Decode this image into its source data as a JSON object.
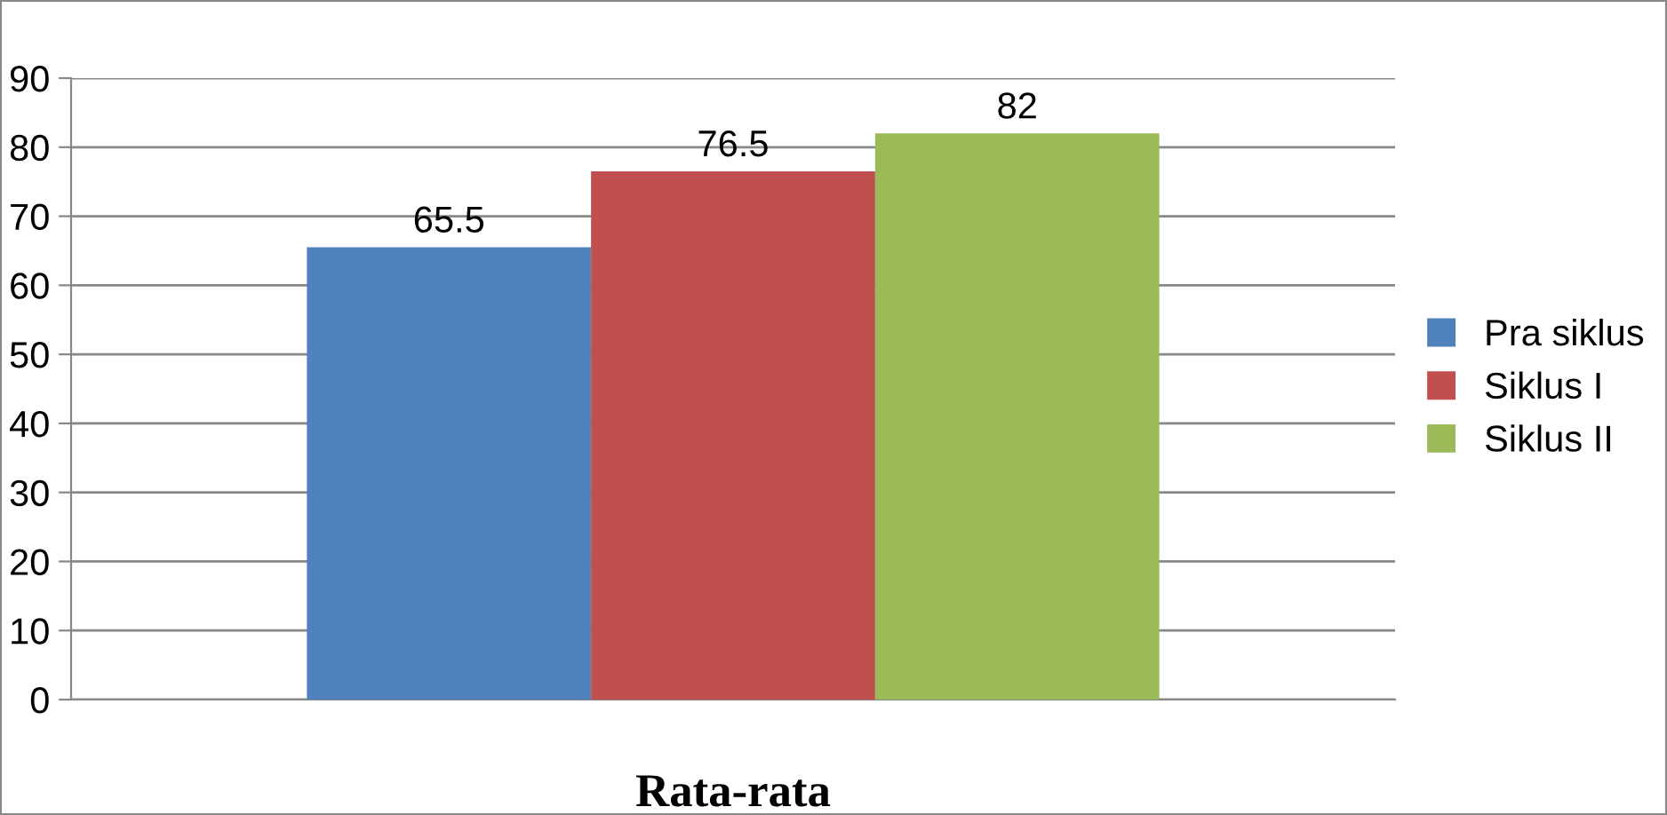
{
  "chart_data": {
    "type": "bar",
    "categories": [
      "Rata-rata"
    ],
    "series": [
      {
        "name": "Pra siklus",
        "color": "#4f81bd",
        "values": [
          65.5
        ]
      },
      {
        "name": "Siklus I",
        "color": "#c0504d",
        "values": [
          76.5
        ]
      },
      {
        "name": "Siklus II",
        "color": "#9bbb59",
        "values": [
          82
        ]
      }
    ],
    "ylim": [
      0,
      90
    ],
    "yticks": [
      0,
      10,
      20,
      30,
      40,
      50,
      60,
      70,
      80,
      90
    ],
    "grid": "y",
    "legend": "right",
    "data_labels": true
  }
}
